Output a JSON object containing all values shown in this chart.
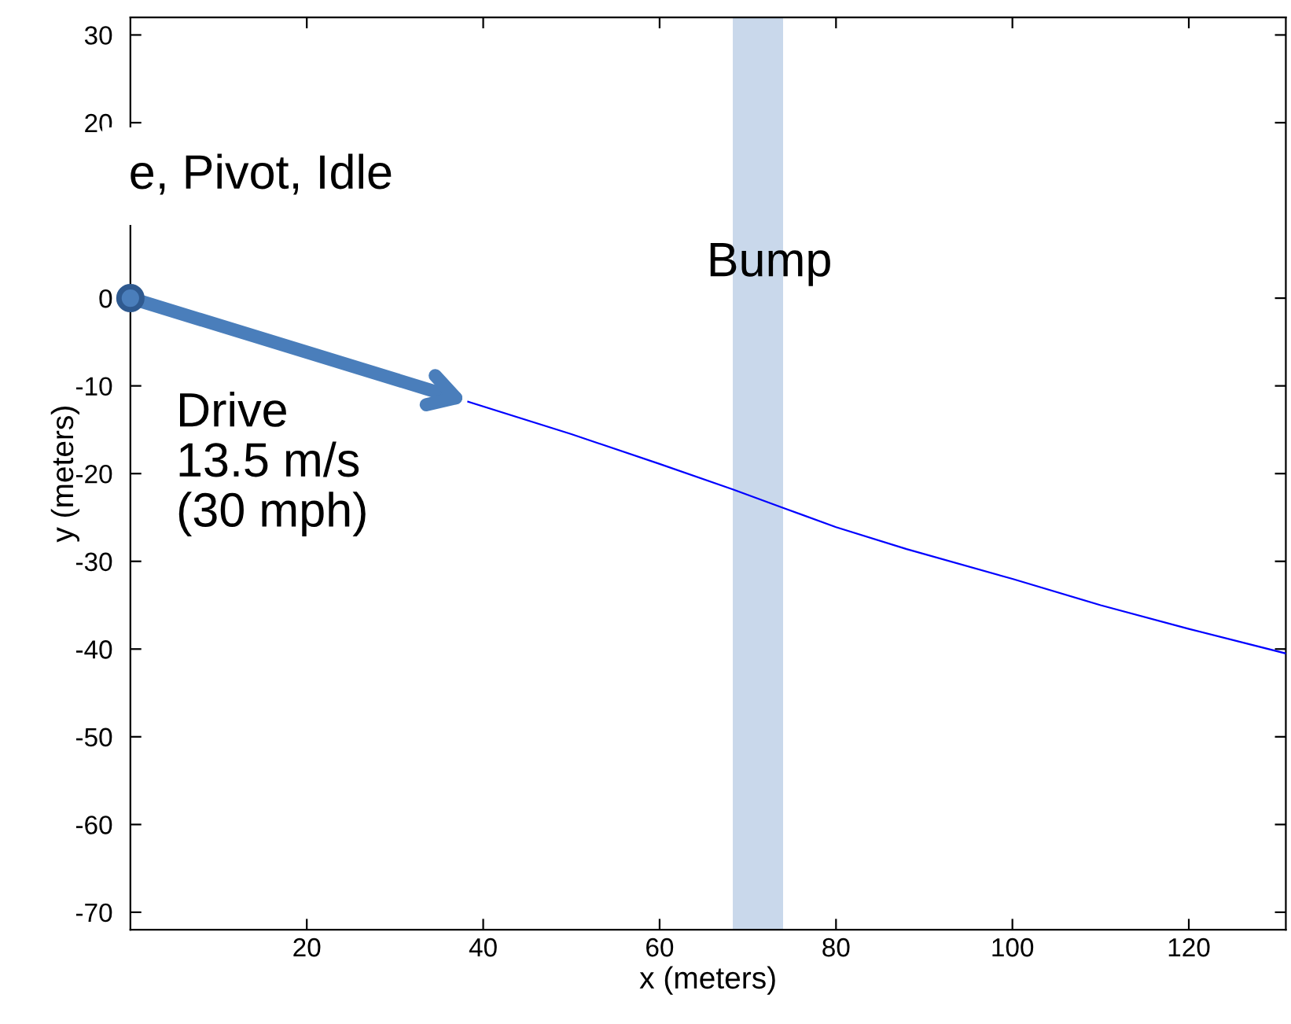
{
  "chart_data": {
    "type": "line",
    "xlabel": "x (meters)",
    "ylabel": "y (meters)",
    "xlim": [
      0,
      131
    ],
    "ylim": [
      -72,
      32
    ],
    "xticks": [
      20,
      40,
      60,
      80,
      100,
      120
    ],
    "yticks": [
      -70,
      -60,
      -50,
      -40,
      -30,
      -20,
      -10,
      0,
      20,
      30
    ],
    "grid": false,
    "series": [
      {
        "color": "#0000ff",
        "x": [
          38.3,
          50,
          60,
          68.3,
          74,
          80,
          88,
          100,
          110,
          120,
          131
        ],
        "values": [
          -11.8,
          -15.5,
          -18.9,
          -21.8,
          -23.9,
          -26.1,
          -28.6,
          -32,
          -35,
          -37.7,
          -40.5
        ]
      },
      {
        "type": "scatter",
        "color": "#4a7ebb",
        "marker": "circle",
        "x": [
          0
        ],
        "values": [
          0
        ]
      }
    ],
    "bands": [
      {
        "axis": "x",
        "from": 68.3,
        "to": 74,
        "label": "Bump",
        "color": "#c9d8eb"
      }
    ],
    "annotations": [
      "e, Pivot, Idle",
      {
        "text": "Drive\n13.5 m/s\n(30 mph)",
        "x": 38.3,
        "y": -11.8
      }
    ]
  }
}
